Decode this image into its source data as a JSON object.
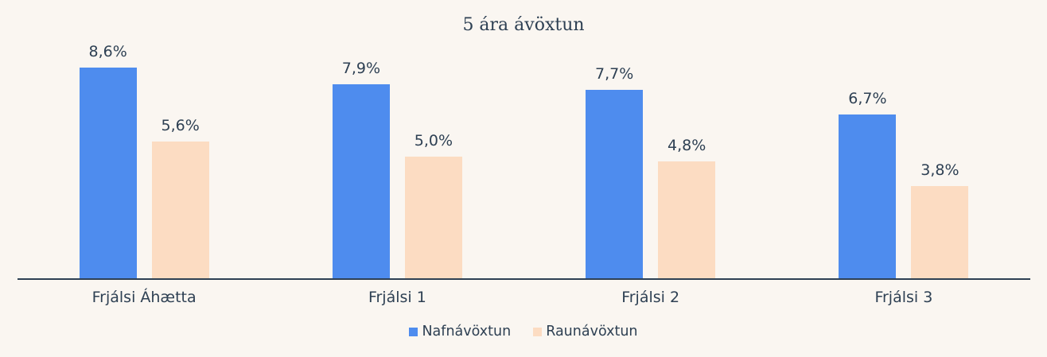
{
  "chart_data": {
    "type": "bar",
    "title": "5 ára ávöxtun",
    "categories": [
      "Frjálsi Áhætta",
      "Frjálsi 1",
      "Frjálsi 2",
      "Frjálsi 3"
    ],
    "series": [
      {
        "name": "Nafnávöxtun",
        "color": "#4e8cee",
        "values": [
          8.6,
          7.9,
          7.7,
          6.7
        ],
        "labels": [
          "8,6%",
          "7,9%",
          "7,7%",
          "6,7%"
        ]
      },
      {
        "name": "Raunávöxtun",
        "color": "#fcdcc2",
        "values": [
          5.6,
          5.0,
          4.8,
          3.8
        ],
        "labels": [
          "5,6%",
          "5,0%",
          "4,8%",
          "3,8%"
        ]
      }
    ],
    "xlabel": "",
    "ylabel": "",
    "ylim": [
      0,
      11.3
    ],
    "grid": false,
    "legend_position": "bottom",
    "value_label_decimal_separator": ","
  },
  "colors": {
    "background": "#faf6f1",
    "text": "#2e4053",
    "axis": "#2e4053",
    "bar_blue": "#4e8cee",
    "bar_peach": "#fcdcc2"
  }
}
